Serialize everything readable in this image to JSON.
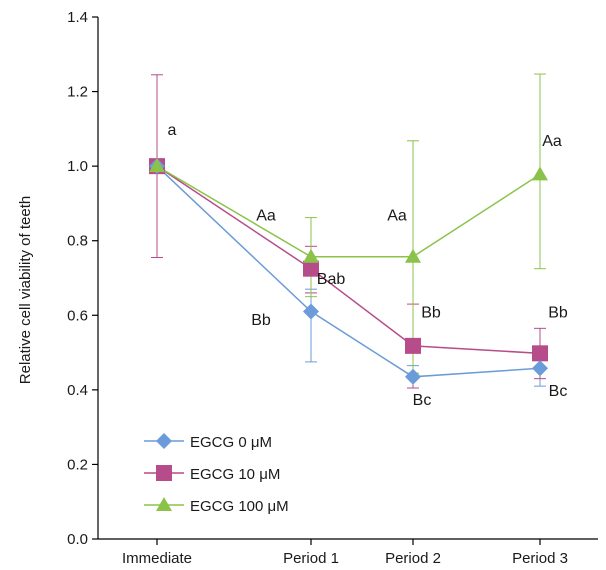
{
  "chart_data": {
    "type": "line",
    "title": "",
    "xlabel": "",
    "ylabel": "Relative cell viability of teeth",
    "categories": [
      "Immediate",
      "Period 1",
      "Period 2",
      "Period 3"
    ],
    "ylim": [
      0,
      1.4
    ],
    "yticks": [
      "0.0",
      "0.2",
      "0.4",
      "0.6",
      "0.8",
      "1.0",
      "1.2",
      "1.4"
    ],
    "grid": false,
    "legend_position": "bottom-left",
    "series": [
      {
        "name": "EGCG 0 μM",
        "color": "#6b9bd8",
        "marker": "diamond",
        "values": [
          1.0,
          0.61,
          0.435,
          0.458
        ],
        "err_low": [
          null,
          0.475,
          0.405,
          0.41
        ],
        "err_high": [
          null,
          0.67,
          0.465,
          0.5
        ]
      },
      {
        "name": "EGCG 10 μM",
        "color": "#b64c8a",
        "marker": "square",
        "values": [
          1.0,
          0.725,
          0.518,
          0.498
        ],
        "err_low": [
          0.755,
          0.66,
          0.405,
          0.43
        ],
        "err_high": [
          1.245,
          0.785,
          0.63,
          0.565
        ]
      },
      {
        "name": "EGCG 100 μM",
        "color": "#8bc34a",
        "marker": "triangle",
        "values": [
          1.0,
          0.757,
          0.757,
          0.978
        ],
        "err_low": [
          null,
          0.65,
          0.445,
          0.725
        ],
        "err_high": [
          null,
          0.862,
          1.068,
          1.247
        ]
      }
    ],
    "annotations": [
      {
        "text": "a",
        "category": "Immediate",
        "y": 1.1
      },
      {
        "text": "Aa",
        "category": "Period 1",
        "y": 0.87
      },
      {
        "text": "Bab",
        "category": "Period 1",
        "y": 0.7
      },
      {
        "text": "Bb",
        "category": "Period 1",
        "y": 0.59
      },
      {
        "text": "Aa",
        "category": "Period 2",
        "y": 0.87
      },
      {
        "text": "Bb",
        "category": "Period 2",
        "y": 0.61
      },
      {
        "text": "Bc",
        "category": "Period 2",
        "y": 0.375
      },
      {
        "text": "Aa",
        "category": "Period 3",
        "y": 1.07
      },
      {
        "text": "Bb",
        "category": "Period 3",
        "y": 0.61
      },
      {
        "text": "Bc",
        "category": "Period 3",
        "y": 0.4
      }
    ]
  }
}
